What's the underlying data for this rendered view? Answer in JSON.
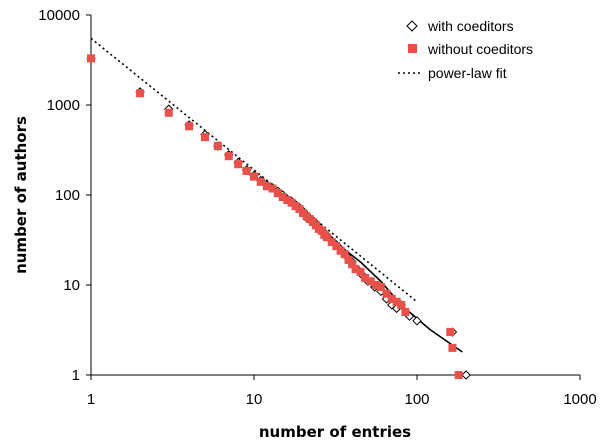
{
  "chart_data": {
    "type": "scatter",
    "title": "",
    "xlabel": "number of entries",
    "ylabel": "number of authors",
    "xscale": "log",
    "yscale": "log",
    "xlim": [
      1,
      1000
    ],
    "ylim": [
      1,
      10000
    ],
    "xticks": [
      "1",
      "10",
      "100",
      "1000"
    ],
    "yticks": [
      "1",
      "10",
      "100",
      "1000",
      "10000"
    ],
    "grid": false,
    "legend_position": "top-right",
    "series": [
      {
        "name": "with coeditors",
        "marker": "diamond-open",
        "color": "#000000",
        "x": [
          1,
          2,
          3,
          4,
          5,
          6,
          7,
          8,
          9,
          10,
          11,
          12,
          13,
          14,
          15,
          16,
          17,
          18,
          19,
          20,
          21,
          22,
          23,
          24,
          25,
          26,
          27,
          28,
          30,
          32,
          34,
          36,
          38,
          40,
          43,
          46,
          50,
          55,
          60,
          65,
          70,
          75,
          80,
          90,
          100,
          165,
          200
        ],
        "y": [
          3300,
          1400,
          900,
          600,
          470,
          350,
          280,
          230,
          190,
          165,
          145,
          130,
          120,
          110,
          100,
          90,
          85,
          78,
          72,
          66,
          60,
          55,
          52,
          48,
          44,
          41,
          38,
          35,
          31,
          28,
          25,
          22,
          20,
          18,
          15,
          13,
          11,
          9.5,
          8.5,
          7,
          6,
          5.5,
          6,
          4.5,
          4,
          3,
          1
        ]
      },
      {
        "name": "without coeditors",
        "marker": "square-filled",
        "color": "#e8504a",
        "x": [
          1,
          2,
          3,
          4,
          5,
          6,
          7,
          8,
          9,
          10,
          11,
          12,
          13,
          14,
          15,
          16,
          17,
          18,
          19,
          20,
          21,
          22,
          23,
          24,
          25,
          26,
          27,
          28,
          30,
          32,
          34,
          36,
          38,
          40,
          42,
          45,
          48,
          52,
          56,
          60,
          65,
          70,
          75,
          80,
          85,
          160,
          165,
          180
        ],
        "y": [
          3300,
          1350,
          820,
          580,
          440,
          350,
          270,
          220,
          185,
          160,
          140,
          125,
          118,
          105,
          95,
          88,
          82,
          75,
          70,
          63,
          58,
          54,
          50,
          46,
          42,
          40,
          36,
          34,
          30,
          27,
          24,
          22,
          19,
          17,
          15,
          14,
          12,
          11,
          10,
          9.5,
          8,
          7,
          6.5,
          6,
          5,
          3,
          2,
          1
        ]
      },
      {
        "name": "power-law fit",
        "line_style": "dotted",
        "color": "#000000",
        "x": [
          1,
          10,
          100
        ],
        "y": [
          5500,
          190,
          6.5
        ]
      },
      {
        "name": "",
        "line_style": "solid",
        "color": "#000000",
        "x": [
          20,
          30,
          45,
          60,
          80,
          120,
          190
        ],
        "y": [
          55,
          32,
          18,
          11,
          6,
          3.2,
          1.8
        ]
      }
    ]
  }
}
